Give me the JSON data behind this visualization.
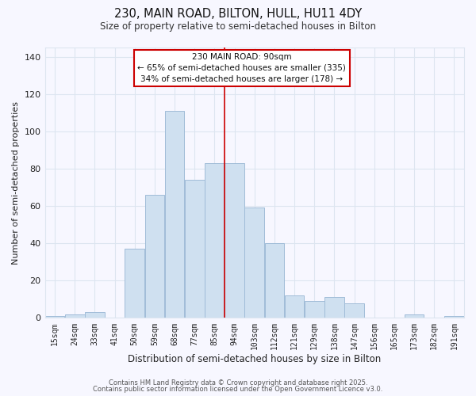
{
  "title": "230, MAIN ROAD, BILTON, HULL, HU11 4DY",
  "subtitle": "Size of property relative to semi-detached houses in Bilton",
  "xlabel": "Distribution of semi-detached houses by size in Bilton",
  "ylabel": "Number of semi-detached properties",
  "bin_labels": [
    "15sqm",
    "24sqm",
    "33sqm",
    "41sqm",
    "50sqm",
    "59sqm",
    "68sqm",
    "77sqm",
    "85sqm",
    "94sqm",
    "103sqm",
    "112sqm",
    "121sqm",
    "129sqm",
    "138sqm",
    "147sqm",
    "156sqm",
    "165sqm",
    "173sqm",
    "182sqm",
    "191sqm"
  ],
  "bar_heights": [
    1,
    2,
    3,
    0,
    37,
    66,
    111,
    74,
    83,
    83,
    59,
    40,
    12,
    9,
    11,
    8,
    0,
    0,
    2,
    0,
    1
  ],
  "bar_color": "#cfe0f0",
  "bar_edge_color": "#a0bcd8",
  "vline_x": 8.5,
  "vline_color": "#cc0000",
  "ylim": [
    0,
    145
  ],
  "yticks": [
    0,
    20,
    40,
    60,
    80,
    100,
    120,
    140
  ],
  "annotation_title": "230 MAIN ROAD: 90sqm",
  "annotation_line1": "← 65% of semi-detached houses are smaller (335)",
  "annotation_line2": "34% of semi-detached houses are larger (178) →",
  "annotation_box_color": "#ffffff",
  "annotation_box_edge": "#cc0000",
  "footer1": "Contains HM Land Registry data © Crown copyright and database right 2025.",
  "footer2": "Contains public sector information licensed under the Open Government Licence v3.0.",
  "background_color": "#f7f7ff",
  "grid_color": "#dde5f0",
  "title_fontsize": 10.5,
  "subtitle_fontsize": 8.5
}
